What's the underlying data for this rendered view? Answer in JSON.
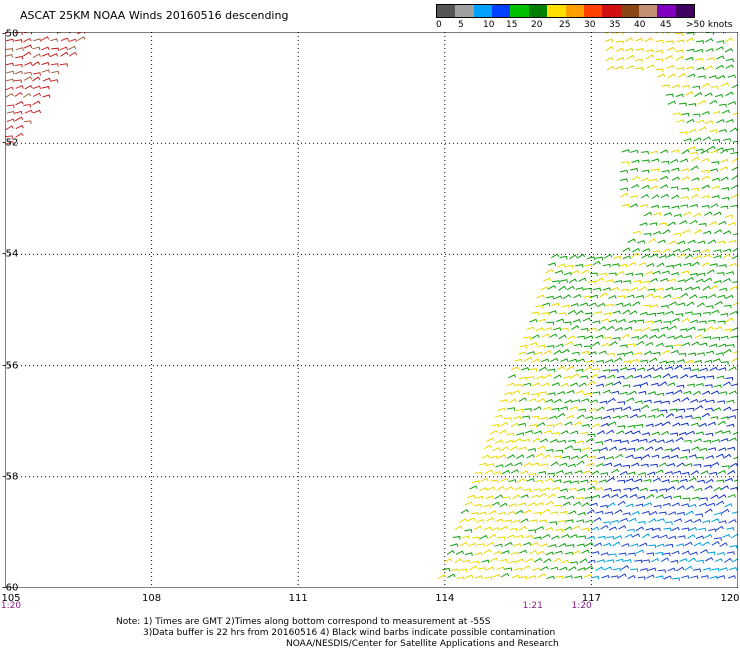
{
  "title": "ASCAT 25KM NOAA Winds 20160516 descending",
  "scale": {
    "labels": [
      "0",
      "5",
      "10",
      "15",
      "20",
      "25",
      "30",
      "35",
      "40",
      "45",
      ">50 knots"
    ],
    "colors": [
      "#555555",
      "#a0a0a0",
      "#00a0ff",
      "#0040ff",
      "#00c000",
      "#008000",
      "#ffe000",
      "#ffa000",
      "#ff4000",
      "#d01010",
      "#8b4513",
      "#c09070",
      "#8000c0",
      "#400060"
    ]
  },
  "map": {
    "lon_min": 105,
    "lon_max": 120,
    "lat_min": -60,
    "lat_max": -50,
    "lon_ticks": [
      "105",
      "108",
      "111",
      "114",
      "117",
      "120"
    ],
    "lat_ticks": [
      "-50",
      "-52",
      "-54",
      "-56",
      "-58",
      "-60"
    ]
  },
  "times": [
    {
      "label": "1:20",
      "lon": 105
    },
    {
      "label": "1:21",
      "lon": 115.8
    },
    {
      "label": "1:20",
      "lon": 116.8
    }
  ],
  "notes": [
    "Note: 1) Times are GMT 2)Times along bottom correspond to measurement at -55S",
    "3)Data buffer is 22 hrs from 20160516 4) Black wind barbs indicate possible contamination",
    "NOAA/NESDIS/Center for Satellite Applications and Research"
  ]
}
